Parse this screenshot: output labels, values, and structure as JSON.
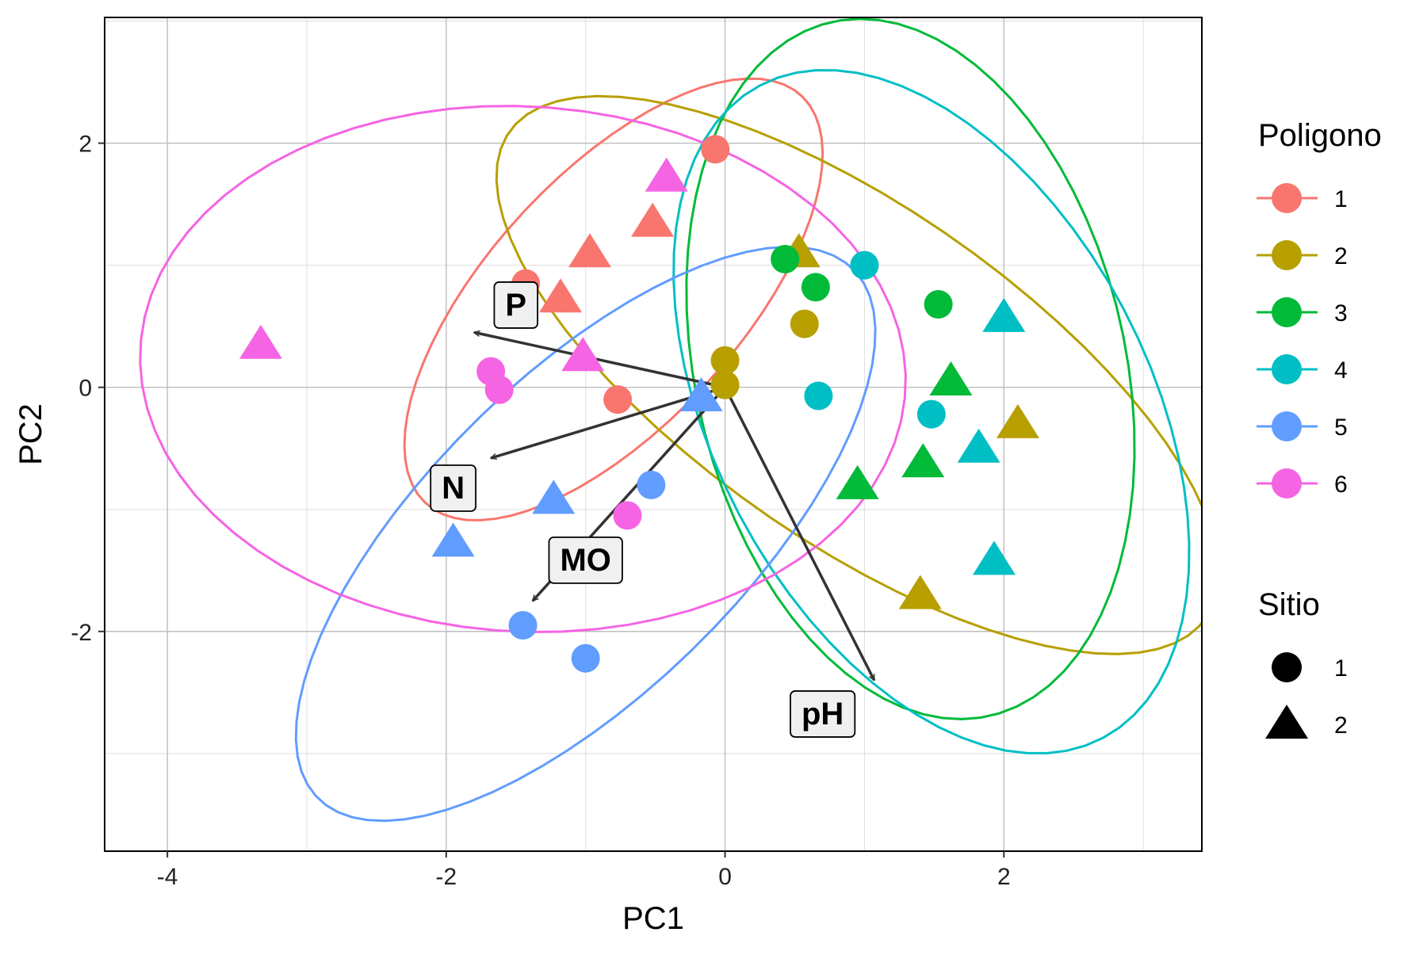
{
  "chart_data": {
    "type": "scatter",
    "title": "",
    "xlabel": "PC1",
    "ylabel": "PC2",
    "xlim": [
      -4.45,
      3.42
    ],
    "ylim": [
      -3.8,
      3.03
    ],
    "x_ticks": [
      -4,
      -2,
      0,
      2
    ],
    "x_tick_labels": [
      "-4",
      "-2",
      "0",
      "2"
    ],
    "y_ticks": [
      -2,
      0,
      2
    ],
    "y_tick_labels": [
      "-2",
      "0",
      "2"
    ],
    "grid": true,
    "legend_position": "right",
    "colors": {
      "1": "#F8766D",
      "2": "#B79F00",
      "3": "#00BA38",
      "4": "#00BFC4",
      "5": "#619CFF",
      "6": "#F564E3"
    },
    "points": [
      {
        "x": -0.07,
        "y": 1.95,
        "poligono": "1",
        "sitio": "1"
      },
      {
        "x": -1.43,
        "y": 0.85,
        "poligono": "1",
        "sitio": "1"
      },
      {
        "x": -0.77,
        "y": -0.1,
        "poligono": "1",
        "sitio": "1"
      },
      {
        "x": -0.52,
        "y": 1.35,
        "poligono": "1",
        "sitio": "2"
      },
      {
        "x": -0.97,
        "y": 1.1,
        "poligono": "1",
        "sitio": "2"
      },
      {
        "x": -1.18,
        "y": 0.73,
        "poligono": "1",
        "sitio": "2"
      },
      {
        "x": 0.57,
        "y": 0.52,
        "poligono": "2",
        "sitio": "1"
      },
      {
        "x": 0.0,
        "y": 0.22,
        "poligono": "2",
        "sitio": "1"
      },
      {
        "x": 0.0,
        "y": 0.02,
        "poligono": "2",
        "sitio": "1"
      },
      {
        "x": 0.53,
        "y": 1.1,
        "poligono": "2",
        "sitio": "2"
      },
      {
        "x": 2.1,
        "y": -0.3,
        "poligono": "2",
        "sitio": "2"
      },
      {
        "x": 1.4,
        "y": -1.7,
        "poligono": "2",
        "sitio": "2"
      },
      {
        "x": 0.43,
        "y": 1.05,
        "poligono": "3",
        "sitio": "1"
      },
      {
        "x": 0.65,
        "y": 0.82,
        "poligono": "3",
        "sitio": "1"
      },
      {
        "x": 1.53,
        "y": 0.68,
        "poligono": "3",
        "sitio": "1"
      },
      {
        "x": 1.62,
        "y": 0.05,
        "poligono": "3",
        "sitio": "2"
      },
      {
        "x": 1.42,
        "y": -0.62,
        "poligono": "3",
        "sitio": "2"
      },
      {
        "x": 0.95,
        "y": -0.8,
        "poligono": "3",
        "sitio": "2"
      },
      {
        "x": 1.0,
        "y": 1.0,
        "poligono": "4",
        "sitio": "1"
      },
      {
        "x": 0.67,
        "y": -0.07,
        "poligono": "4",
        "sitio": "1"
      },
      {
        "x": 1.48,
        "y": -0.22,
        "poligono": "4",
        "sitio": "1"
      },
      {
        "x": 2.0,
        "y": 0.57,
        "poligono": "4",
        "sitio": "2"
      },
      {
        "x": 1.82,
        "y": -0.5,
        "poligono": "4",
        "sitio": "2"
      },
      {
        "x": 1.93,
        "y": -1.42,
        "poligono": "4",
        "sitio": "2"
      },
      {
        "x": -0.53,
        "y": -0.8,
        "poligono": "5",
        "sitio": "1"
      },
      {
        "x": -1.45,
        "y": -1.95,
        "poligono": "5",
        "sitio": "1"
      },
      {
        "x": -1.0,
        "y": -2.22,
        "poligono": "5",
        "sitio": "1"
      },
      {
        "x": -0.17,
        "y": -0.08,
        "poligono": "5",
        "sitio": "2"
      },
      {
        "x": -1.23,
        "y": -0.92,
        "poligono": "5",
        "sitio": "2"
      },
      {
        "x": -1.95,
        "y": -1.27,
        "poligono": "5",
        "sitio": "2"
      },
      {
        "x": -1.68,
        "y": 0.13,
        "poligono": "6",
        "sitio": "1"
      },
      {
        "x": -1.62,
        "y": -0.02,
        "poligono": "6",
        "sitio": "1"
      },
      {
        "x": -0.7,
        "y": -1.05,
        "poligono": "6",
        "sitio": "1"
      },
      {
        "x": -0.42,
        "y": 1.72,
        "poligono": "6",
        "sitio": "2"
      },
      {
        "x": -3.33,
        "y": 0.35,
        "poligono": "6",
        "sitio": "2"
      },
      {
        "x": -1.02,
        "y": 0.25,
        "poligono": "6",
        "sitio": "2"
      }
    ],
    "ellipses": [
      {
        "poligono": "1",
        "cx": -0.8,
        "cy": 0.72,
        "a": 2.15,
        "b": 0.95,
        "angle_deg": 53
      },
      {
        "poligono": "2",
        "cx": 0.95,
        "cy": 0.1,
        "a": 3.2,
        "b": 1.3,
        "angle_deg": -40
      },
      {
        "poligono": "3",
        "cx": 1.33,
        "cy": 0.15,
        "a": 2.9,
        "b": 1.55,
        "angle_deg": -80
      },
      {
        "poligono": "4",
        "cx": 1.48,
        "cy": -0.2,
        "a": 2.95,
        "b": 1.6,
        "angle_deg": -68
      },
      {
        "poligono": "5",
        "cx": -1.0,
        "cy": -1.2,
        "a": 2.9,
        "b": 1.2,
        "angle_deg": 50
      },
      {
        "poligono": "6",
        "cx": -1.45,
        "cy": 0.15,
        "a": 2.75,
        "b": 2.15,
        "angle_deg": -5
      }
    ],
    "loadings": [
      {
        "name": "P",
        "x": -1.8,
        "y": 0.45,
        "label_x": -1.5,
        "label_y": 0.68
      },
      {
        "name": "N",
        "x": -1.68,
        "y": -0.58,
        "label_x": -1.95,
        "label_y": -0.82
      },
      {
        "name": "MO",
        "x": -1.38,
        "y": -1.75,
        "label_x": -1.0,
        "label_y": -1.41
      },
      {
        "name": "pH",
        "x": 1.07,
        "y": -2.4,
        "label_x": 0.7,
        "label_y": -2.67
      }
    ]
  },
  "legend": {
    "poligono_title": "Poligono",
    "poligono_items": [
      "1",
      "2",
      "3",
      "4",
      "5",
      "6"
    ],
    "sitio_title": "Sitio",
    "sitio_items": [
      {
        "label": "1",
        "shape": "circle"
      },
      {
        "label": "2",
        "shape": "triangle"
      }
    ]
  }
}
